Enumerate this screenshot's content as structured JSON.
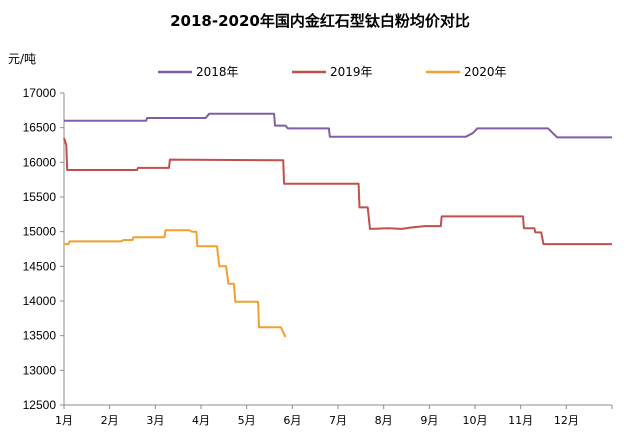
{
  "chart_data": {
    "type": "line",
    "title": "2018-2020年国内金红石型钛白粉均价对比",
    "unit_label": "元/吨",
    "ylim": [
      12500,
      17000
    ],
    "yticks": [
      12500,
      13000,
      13500,
      14000,
      14500,
      15000,
      15500,
      16000,
      16500,
      17000
    ],
    "xlim": [
      1,
      13
    ],
    "month_labels": [
      "1月",
      "2月",
      "3月",
      "4月",
      "5月",
      "6月",
      "7月",
      "8月",
      "9月",
      "10月",
      "11月",
      "12月"
    ],
    "grid": false,
    "legend_position": "top",
    "series": [
      {
        "name": "2018年",
        "color": "#7f5fa8",
        "points": [
          [
            1.0,
            16600
          ],
          [
            1.8,
            16600
          ],
          [
            2.5,
            16600
          ],
          [
            2.8,
            16600
          ],
          [
            2.82,
            16640
          ],
          [
            3.5,
            16640
          ],
          [
            4.1,
            16640
          ],
          [
            4.18,
            16700
          ],
          [
            5.6,
            16700
          ],
          [
            5.62,
            16530
          ],
          [
            5.85,
            16530
          ],
          [
            5.9,
            16490
          ],
          [
            6.8,
            16490
          ],
          [
            6.82,
            16370
          ],
          [
            8.5,
            16370
          ],
          [
            9.8,
            16370
          ],
          [
            9.95,
            16420
          ],
          [
            10.05,
            16490
          ],
          [
            11.6,
            16490
          ],
          [
            11.8,
            16360
          ],
          [
            13.0,
            16360
          ]
        ]
      },
      {
        "name": "2019年",
        "color": "#c0504d",
        "points": [
          [
            1.0,
            16350
          ],
          [
            1.05,
            16250
          ],
          [
            1.07,
            15890
          ],
          [
            2.5,
            15890
          ],
          [
            2.6,
            15890
          ],
          [
            2.62,
            15920
          ],
          [
            3.3,
            15920
          ],
          [
            3.32,
            16040
          ],
          [
            5.8,
            16030
          ],
          [
            5.82,
            15690
          ],
          [
            7.45,
            15690
          ],
          [
            7.47,
            15350
          ],
          [
            7.65,
            15350
          ],
          [
            7.7,
            15040
          ],
          [
            8.1,
            15050
          ],
          [
            8.4,
            15040
          ],
          [
            8.6,
            15060
          ],
          [
            8.9,
            15080
          ],
          [
            9.25,
            15080
          ],
          [
            9.27,
            15220
          ],
          [
            11.05,
            15220
          ],
          [
            11.07,
            15050
          ],
          [
            11.3,
            15050
          ],
          [
            11.32,
            14990
          ],
          [
            11.45,
            14990
          ],
          [
            11.5,
            14820
          ],
          [
            13.0,
            14820
          ]
        ]
      },
      {
        "name": "2020年",
        "color": "#f0a030",
        "points": [
          [
            1.0,
            14820
          ],
          [
            1.1,
            14820
          ],
          [
            1.12,
            14860
          ],
          [
            2.25,
            14860
          ],
          [
            2.3,
            14880
          ],
          [
            2.5,
            14880
          ],
          [
            2.52,
            14920
          ],
          [
            3.2,
            14920
          ],
          [
            3.22,
            15020
          ],
          [
            3.75,
            15020
          ],
          [
            3.8,
            15000
          ],
          [
            3.9,
            15000
          ],
          [
            3.92,
            14790
          ],
          [
            4.35,
            14790
          ],
          [
            4.4,
            14500
          ],
          [
            4.55,
            14500
          ],
          [
            4.6,
            14250
          ],
          [
            4.72,
            14250
          ],
          [
            4.75,
            13990
          ],
          [
            5.25,
            13990
          ],
          [
            5.27,
            13620
          ],
          [
            5.75,
            13620
          ],
          [
            5.85,
            13480
          ]
        ]
      }
    ]
  }
}
